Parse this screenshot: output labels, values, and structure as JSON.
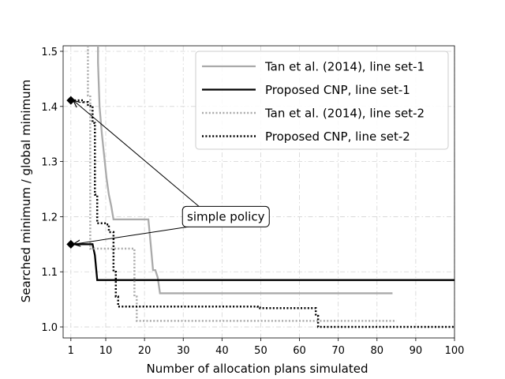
{
  "chart_data": {
    "type": "line",
    "title": "",
    "xlabel": "Number of allocation plans simulated",
    "ylabel": "Searched minimum / global minimum",
    "xlim": [
      -1,
      100
    ],
    "ylim": [
      0.98,
      1.51
    ],
    "xticks": [
      1,
      10,
      20,
      30,
      40,
      50,
      60,
      70,
      80,
      90,
      100
    ],
    "yticks": [
      1.0,
      1.1,
      1.2,
      1.3,
      1.4,
      1.5
    ],
    "ytick_labels": [
      "1.0",
      "1.1",
      "1.2",
      "1.3",
      "1.4",
      "1.5"
    ],
    "grid": true,
    "legend_position": "upper-right",
    "series": [
      {
        "name": "Tan et al. (2014), line set-1",
        "color": "#aaaaaa",
        "dash": "solid",
        "x": [
          8,
          8,
          8.4,
          9,
          9.6,
          10.2,
          10.8,
          11.4,
          12,
          21,
          21.6,
          22.2,
          22.8,
          23.4,
          24,
          84
        ],
        "y": [
          1.51,
          1.48,
          1.4,
          1.35,
          1.31,
          1.27,
          1.24,
          1.22,
          1.195,
          1.195,
          1.15,
          1.103,
          1.103,
          1.09,
          1.061,
          1.061
        ]
      },
      {
        "name": "Proposed CNP, line set-1",
        "color": "#000000",
        "dash": "solid",
        "x": [
          1,
          6.6,
          7.2,
          7.8,
          100
        ],
        "y": [
          1.15,
          1.15,
          1.13,
          1.085,
          1.085
        ]
      },
      {
        "name": "Tan et al. (2014), line set-2",
        "color": "#aaaaaa",
        "dash": "dotted",
        "x": [
          5.4,
          5.4,
          6,
          6,
          17.4,
          17.4,
          18,
          18,
          85
        ],
        "y": [
          1.51,
          1.42,
          1.42,
          1.142,
          1.142,
          1.055,
          1.055,
          1.011,
          1.011
        ]
      },
      {
        "name": "Proposed CNP, line set-2",
        "color": "#000000",
        "dash": "dotted",
        "x": [
          1,
          4.2,
          4.2,
          5.4,
          5.4,
          6.6,
          6.6,
          7.2,
          7.2,
          7.8,
          7.8,
          10.2,
          10.2,
          10.8,
          10.8,
          12,
          12,
          12.6,
          12.6,
          13.2,
          13.2,
          49.2,
          49.2,
          49.8,
          49.8,
          64.2,
          64.2,
          64.8,
          64.8,
          100
        ],
        "y": [
          1.411,
          1.411,
          1.408,
          1.408,
          1.401,
          1.401,
          1.37,
          1.37,
          1.24,
          1.24,
          1.188,
          1.188,
          1.186,
          1.186,
          1.172,
          1.172,
          1.1,
          1.1,
          1.055,
          1.055,
          1.037,
          1.037,
          1.035,
          1.035,
          1.034,
          1.034,
          1.02,
          1.02,
          1.0,
          1.0
        ]
      }
    ],
    "markers": [
      {
        "x": 1,
        "y": 1.411
      },
      {
        "x": 1,
        "y": 1.15
      }
    ],
    "annotations": [
      {
        "text": "simple policy",
        "at": {
          "x": 41,
          "y": 1.2
        },
        "arrows_to": [
          {
            "x": 1,
            "y": 1.411
          },
          {
            "x": 1,
            "y": 1.15
          }
        ]
      }
    ]
  }
}
